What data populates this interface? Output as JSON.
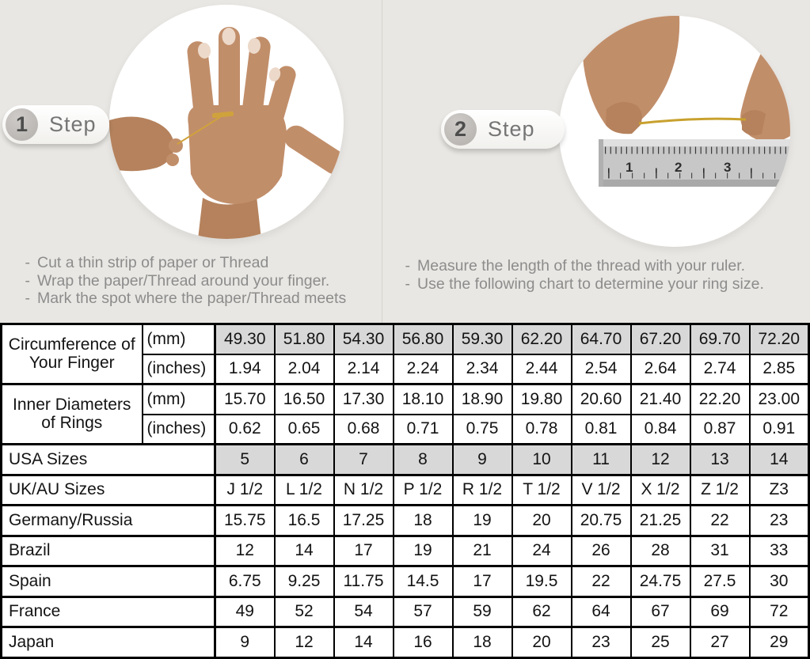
{
  "ui": {
    "bullet": "-"
  },
  "colors": {
    "page_background": "#e9e7e3",
    "table_shaded_cell": "#d8d8d8",
    "table_border": "#000000",
    "instruction_text": "#8c8c8c",
    "step_text": "#757575",
    "skin_tone": "#c18e6a",
    "thread_gold": "#c8a12e",
    "ruler_silver": "#c7c7c7"
  },
  "steps": [
    {
      "number": "1",
      "step_label": "Step",
      "instructions": [
        "Cut a thin strip of paper or Thread",
        "Wrap the paper/Thread around your finger.",
        "Mark the spot where the paper/Thread meets"
      ]
    },
    {
      "number": "2",
      "step_label": "Step",
      "instructions": [
        "Measure the length of the thread with your ruler.",
        "Use the following chart to determine your ring size."
      ]
    }
  ],
  "photos": {
    "ruler_numbers": [
      "1",
      "2",
      "3"
    ]
  },
  "table": {
    "groups": [
      {
        "label": "Circumference of Your Finger",
        "rows": [
          {
            "unit": "(mm)",
            "shaded": true,
            "values": [
              "49.30",
              "51.80",
              "54.30",
              "56.80",
              "59.30",
              "62.20",
              "64.70",
              "67.20",
              "69.70",
              "72.20"
            ]
          },
          {
            "unit": "(inches)",
            "shaded": false,
            "values": [
              "1.94",
              "2.04",
              "2.14",
              "2.24",
              "2.34",
              "2.44",
              "2.54",
              "2.64",
              "2.74",
              "2.85"
            ]
          }
        ]
      },
      {
        "label": "Inner Diameters of Rings",
        "rows": [
          {
            "unit": "(mm)",
            "shaded": false,
            "values": [
              "15.70",
              "16.50",
              "17.30",
              "18.10",
              "18.90",
              "19.80",
              "20.60",
              "21.40",
              "22.20",
              "23.00"
            ]
          },
          {
            "unit": "(inches)",
            "shaded": false,
            "values": [
              "0.62",
              "0.65",
              "0.68",
              "0.71",
              "0.75",
              "0.78",
              "0.81",
              "0.84",
              "0.87",
              "0.91"
            ]
          }
        ]
      }
    ],
    "size_rows": [
      {
        "label": "USA Sizes",
        "shaded": true,
        "values": [
          "5",
          "6",
          "7",
          "8",
          "9",
          "10",
          "11",
          "12",
          "13",
          "14"
        ]
      },
      {
        "label": "UK/AU Sizes",
        "shaded": false,
        "values": [
          "J 1/2",
          "L 1/2",
          "N 1/2",
          "P 1/2",
          "R 1/2",
          "T 1/2",
          "V 1/2",
          "X 1/2",
          "Z 1/2",
          "Z3"
        ]
      },
      {
        "label": "Germany/Russia",
        "shaded": false,
        "values": [
          "15.75",
          "16.5",
          "17.25",
          "18",
          "19",
          "20",
          "20.75",
          "21.25",
          "22",
          "23"
        ]
      },
      {
        "label": "Brazil",
        "shaded": false,
        "values": [
          "12",
          "14",
          "17",
          "19",
          "21",
          "24",
          "26",
          "28",
          "31",
          "33"
        ]
      },
      {
        "label": "Spain",
        "shaded": false,
        "values": [
          "6.75",
          "9.25",
          "11.75",
          "14.5",
          "17",
          "19.5",
          "22",
          "24.75",
          "27.5",
          "30"
        ]
      },
      {
        "label": "France",
        "shaded": false,
        "values": [
          "49",
          "52",
          "54",
          "57",
          "59",
          "62",
          "64",
          "67",
          "69",
          "72"
        ]
      },
      {
        "label": "Japan",
        "shaded": false,
        "values": [
          "9",
          "12",
          "14",
          "16",
          "18",
          "20",
          "23",
          "25",
          "27",
          "29"
        ]
      }
    ]
  }
}
